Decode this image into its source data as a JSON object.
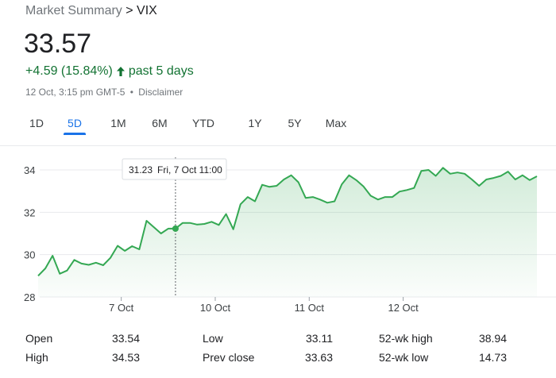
{
  "breadcrumb": {
    "root": "Market Summary",
    "separator": ">",
    "current": "VIX"
  },
  "quote": {
    "price": "33.57",
    "change": "+4.59 (15.84%)",
    "period": "past 5 days",
    "timestamp": "12 Oct, 3:15 pm GMT-5",
    "separator": "•",
    "disclaimer": "Disclaimer",
    "positive_color": "#137333"
  },
  "tabs": [
    {
      "label": "1D",
      "active": false
    },
    {
      "label": "5D",
      "active": true
    },
    {
      "label": "1M",
      "active": false
    },
    {
      "label": "6M",
      "active": false
    },
    {
      "label": "YTD",
      "active": false
    },
    {
      "label": "1Y",
      "active": false
    },
    {
      "label": "5Y",
      "active": false
    },
    {
      "label": "Max",
      "active": false
    }
  ],
  "chart_data": {
    "type": "area",
    "line_color": "#34a853",
    "ylim": [
      28,
      34.5
    ],
    "y_ticks": [
      "28",
      "30",
      "32",
      "34"
    ],
    "y_tick_values": [
      28,
      30,
      32,
      34
    ],
    "x_ticks": [
      {
        "label": "7 Oct",
        "index": 11.5
      },
      {
        "label": "10 Oct",
        "index": 24.5
      },
      {
        "label": "11 Oct",
        "index": 37.5
      },
      {
        "label": "12 Oct",
        "index": 50.5
      }
    ],
    "values": [
      29.0,
      29.35,
      29.95,
      29.1,
      29.25,
      29.75,
      29.58,
      29.52,
      29.62,
      29.5,
      29.85,
      30.42,
      30.18,
      30.4,
      30.25,
      31.6,
      31.3,
      31.0,
      31.23,
      31.23,
      31.5,
      31.5,
      31.42,
      31.45,
      31.55,
      31.4,
      31.92,
      31.2,
      32.38,
      32.72,
      32.52,
      33.3,
      33.2,
      33.25,
      33.55,
      33.75,
      33.42,
      32.68,
      32.72,
      32.6,
      32.45,
      32.52,
      33.32,
      33.75,
      33.52,
      33.22,
      32.78,
      32.6,
      32.72,
      32.72,
      32.98,
      33.05,
      33.15,
      33.95,
      34.0,
      33.72,
      34.1,
      33.82,
      33.88,
      33.82,
      33.55,
      33.25,
      33.55,
      33.62,
      33.72,
      33.92,
      33.55,
      33.75,
      33.52,
      33.7
    ],
    "tooltip": {
      "index": 19,
      "value": "31.23",
      "time": "Fri, 7 Oct 11:00"
    },
    "grid": true
  },
  "stats": [
    {
      "label": "Open",
      "value": "33.54"
    },
    {
      "label": "Low",
      "value": "33.11"
    },
    {
      "label": "52-wk high",
      "value": "38.94"
    },
    {
      "label": "High",
      "value": "34.53"
    },
    {
      "label": "Prev close",
      "value": "33.63"
    },
    {
      "label": "52-wk low",
      "value": "14.73"
    }
  ]
}
